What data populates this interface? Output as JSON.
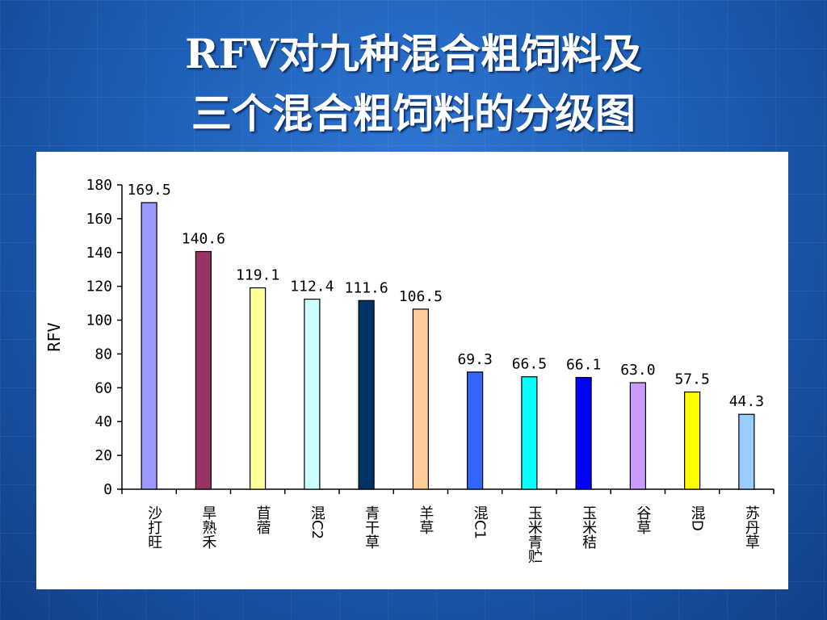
{
  "slide": {
    "title_line1": "RFV对九种混合粗饲料及",
    "title_line2": "三个混合粗饲料的分级图"
  },
  "chart_data": {
    "type": "bar",
    "title": "",
    "xlabel": "",
    "ylabel": "RFV",
    "ylim": [
      0,
      180
    ],
    "yticks": [
      0,
      20,
      40,
      60,
      80,
      100,
      120,
      140,
      160,
      180
    ],
    "grid": false,
    "categories": [
      "沙打旺",
      "旱熟禾",
      "苜蓿",
      "混C2",
      "青干草",
      "羊草",
      "混C1",
      "玉米青贮",
      "玉米秸",
      "谷草",
      "混D",
      "苏丹草"
    ],
    "values": [
      169.5,
      140.6,
      119.1,
      112.4,
      111.6,
      106.5,
      69.3,
      66.5,
      66.1,
      63.0,
      57.5,
      44.3
    ],
    "value_labels": [
      "169.5",
      "140.6",
      "119.1",
      "112.4",
      "111.6",
      "106.5",
      "69.3",
      "66.5",
      "66.1",
      "63.0",
      "57.5",
      "44.3"
    ],
    "colors": [
      "#9999ff",
      "#993366",
      "#ffff99",
      "#ccffff",
      "#003366",
      "#ffcc99",
      "#3366ff",
      "#00ffff",
      "#0000ff",
      "#cc99ff",
      "#ffff00",
      "#99ccff"
    ]
  }
}
